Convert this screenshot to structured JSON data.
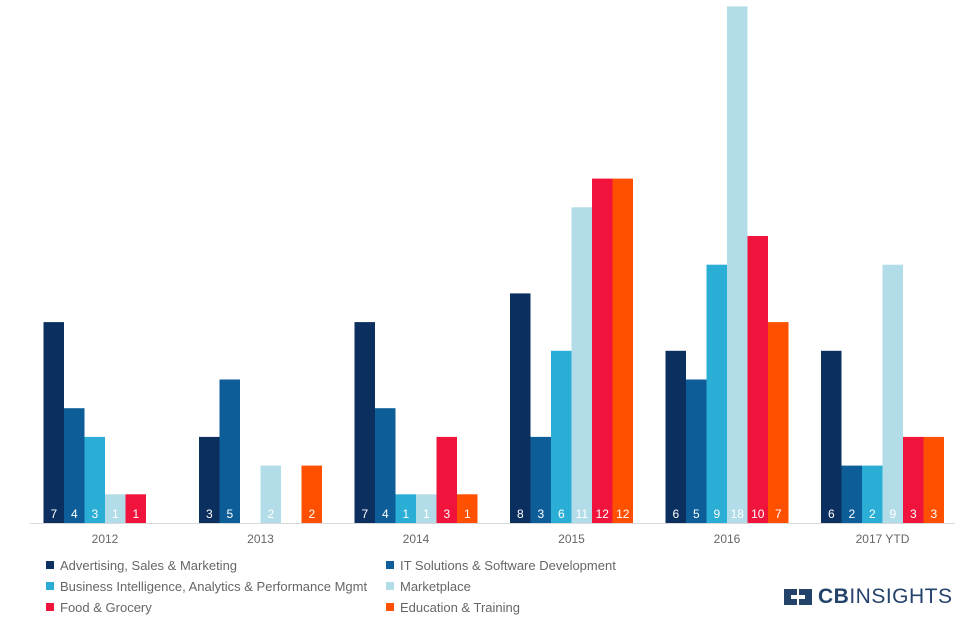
{
  "chart_data": {
    "type": "bar",
    "categories": [
      "2012",
      "2013",
      "2014",
      "2015",
      "2016",
      "2017 YTD"
    ],
    "series": [
      {
        "name": "Advertising, Sales & Marketing",
        "color": "#0b2f5e",
        "values": [
          7,
          3,
          7,
          8,
          6,
          6
        ]
      },
      {
        "name": "IT Solutions & Software Development",
        "color": "#0d5e98",
        "values": [
          4,
          5,
          4,
          3,
          5,
          2
        ]
      },
      {
        "name": "Business Intelligence, Analytics & Performance Mgmt",
        "color": "#2aaed6",
        "values": [
          3,
          null,
          1,
          6,
          9,
          2
        ]
      },
      {
        "name": "Marketplace",
        "color": "#b2dde8",
        "values": [
          1,
          2,
          1,
          11,
          18,
          9
        ]
      },
      {
        "name": "Food & Grocery",
        "color": "#f0143c",
        "values": [
          1,
          null,
          3,
          12,
          10,
          3
        ]
      },
      {
        "name": "Education & Training",
        "color": "#ff5000",
        "values": [
          null,
          2,
          1,
          12,
          7,
          3
        ]
      }
    ],
    "ylim": [
      0,
      18
    ],
    "grid": false,
    "legend_position": "bottom-left"
  },
  "brand": {
    "bold": "CB",
    "rest": "INSIGHTS"
  }
}
